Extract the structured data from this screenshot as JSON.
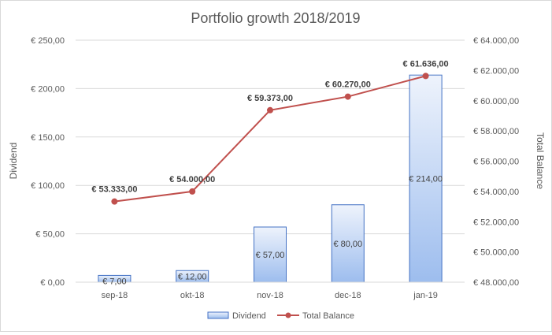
{
  "chart_data": {
    "type": "bar",
    "title": "Portfolio growth 2018/2019",
    "categories": [
      "sep-18",
      "okt-18",
      "nov-18",
      "dec-18",
      "jan-19"
    ],
    "series": [
      {
        "name": "Dividend",
        "type": "bar",
        "axis": "left",
        "values": [
          7,
          12,
          57,
          80,
          214
        ],
        "labels": [
          "€ 7,00",
          "€ 12,00",
          "€ 57,00",
          "€ 80,00",
          "€ 214,00"
        ]
      },
      {
        "name": "Total Balance",
        "type": "line",
        "axis": "right",
        "values": [
          53333,
          54000,
          59373,
          60270,
          61636
        ],
        "labels": [
          "€ 53.333,00",
          "€ 54.000,00",
          "€ 59.373,00",
          "€ 60.270,00",
          "€ 61.636,00"
        ]
      }
    ],
    "ylabel": "Dividend",
    "y2label": "Total Balance",
    "ylim": [
      0,
      250
    ],
    "y2lim": [
      48000,
      64000
    ],
    "yticks": [
      "€ 0,00",
      "€ 50,00",
      "€ 100,00",
      "€ 150,00",
      "€ 200,00",
      "€ 250,00"
    ],
    "y2ticks": [
      "€ 48.000,00",
      "€ 50.000,00",
      "€ 52.000,00",
      "€ 54.000,00",
      "€ 56.000,00",
      "€ 58.000,00",
      "€ 60.000,00",
      "€ 62.000,00",
      "€ 64.000,00"
    ],
    "grid": true,
    "legend": "bottom",
    "colors": {
      "bar_top": "#eef3fc",
      "bar_bottom": "#9dbdee",
      "bar_border": "#4472c4",
      "line": "#c0504d",
      "marker": "#c0504d",
      "grid": "#d9d9d9",
      "text": "#595959",
      "label": "#404040"
    }
  }
}
